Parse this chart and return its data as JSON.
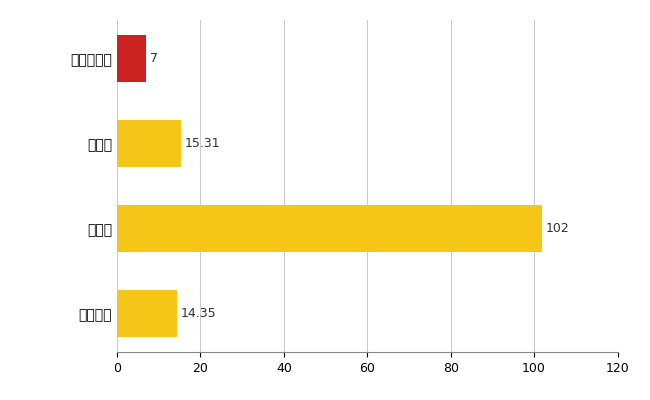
{
  "categories": [
    "伊豆の国市",
    "県平均",
    "県最大",
    "全国平均"
  ],
  "values": [
    7,
    15.31,
    102,
    14.35
  ],
  "labels": [
    "7",
    "15.31",
    "102",
    "14.35"
  ],
  "bar_colors": [
    "#cc2222",
    "#f5c518",
    "#f5c518",
    "#f5c518"
  ],
  "xlim": [
    0,
    120
  ],
  "xticks": [
    0,
    20,
    40,
    60,
    80,
    100,
    120
  ],
  "background_color": "#ffffff",
  "grid_color": "#cccccc"
}
